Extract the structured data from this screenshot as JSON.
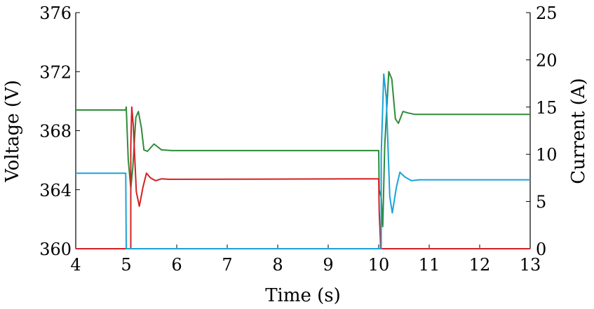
{
  "chart_data": {
    "type": "line",
    "xlabel": "Time (s)",
    "ylabel_left": "Voltage (V)",
    "ylabel_right": "Current (A)",
    "xlim": [
      4,
      13
    ],
    "ylim_left": [
      360,
      376
    ],
    "ylim_right": [
      0,
      25
    ],
    "x_ticks": [
      "4",
      "5",
      "6",
      "7",
      "8",
      "9",
      "10",
      "11",
      "12",
      "13"
    ],
    "y_left_ticks": [
      "360",
      "364",
      "368",
      "372",
      "376"
    ],
    "y_right_ticks": [
      "0",
      "5",
      "10",
      "15",
      "20",
      "25"
    ],
    "grid": false,
    "series": [
      {
        "color": "#2e8b3a",
        "axis": "left",
        "points": [
          [
            4,
            369.4
          ],
          [
            4.99,
            369.4
          ],
          [
            5.0,
            369.6
          ],
          [
            5.04,
            366.0
          ],
          [
            5.09,
            364.1
          ],
          [
            5.13,
            365.5
          ],
          [
            5.19,
            368.9
          ],
          [
            5.24,
            369.3
          ],
          [
            5.3,
            368.2
          ],
          [
            5.35,
            366.7
          ],
          [
            5.42,
            366.6
          ],
          [
            5.55,
            367.1
          ],
          [
            5.7,
            366.7
          ],
          [
            5.9,
            366.65
          ],
          [
            10.0,
            366.65
          ],
          [
            10.01,
            364.0
          ],
          [
            10.05,
            363.5
          ],
          [
            10.08,
            361.5
          ],
          [
            10.12,
            367.0
          ],
          [
            10.2,
            372.0
          ],
          [
            10.26,
            371.5
          ],
          [
            10.33,
            368.8
          ],
          [
            10.39,
            368.5
          ],
          [
            10.48,
            369.3
          ],
          [
            10.58,
            369.2
          ],
          [
            10.72,
            369.1
          ],
          [
            13,
            369.1
          ]
        ]
      },
      {
        "color": "#d42020",
        "axis": "right",
        "points": [
          [
            4,
            0
          ],
          [
            5.09,
            0
          ],
          [
            5.09,
            11.0
          ],
          [
            5.11,
            15.0
          ],
          [
            5.14,
            13.0
          ],
          [
            5.2,
            6.0
          ],
          [
            5.26,
            4.5
          ],
          [
            5.33,
            6.5
          ],
          [
            5.4,
            8.0
          ],
          [
            5.48,
            7.5
          ],
          [
            5.58,
            7.2
          ],
          [
            5.7,
            7.4
          ],
          [
            5.85,
            7.35
          ],
          [
            10.0,
            7.4
          ],
          [
            10.01,
            4.0
          ],
          [
            10.04,
            0
          ],
          [
            13,
            0
          ]
        ]
      },
      {
        "color": "#1aa3d8",
        "axis": "right",
        "points": [
          [
            4,
            8.0
          ],
          [
            4.99,
            8.0
          ],
          [
            5.0,
            0
          ],
          [
            10.05,
            0
          ],
          [
            10.05,
            10.0
          ],
          [
            10.1,
            18.5
          ],
          [
            10.15,
            16.0
          ],
          [
            10.22,
            5.5
          ],
          [
            10.27,
            3.8
          ],
          [
            10.35,
            6.5
          ],
          [
            10.42,
            8.1
          ],
          [
            10.52,
            7.6
          ],
          [
            10.65,
            7.2
          ],
          [
            10.8,
            7.3
          ],
          [
            13,
            7.3
          ]
        ]
      }
    ]
  }
}
